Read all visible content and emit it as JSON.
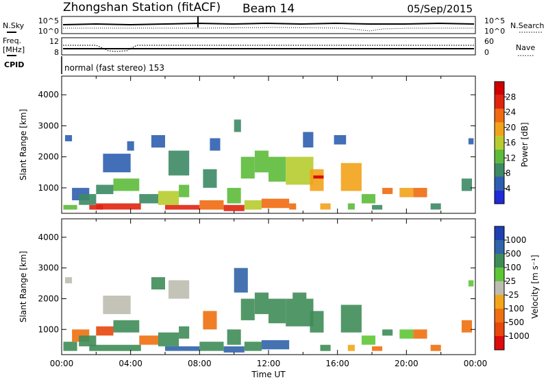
{
  "header": {
    "title": "Zhongshan Station (fitACF)",
    "beam": "Beam 14",
    "date": "05/Sep/2015"
  },
  "top_panels": {
    "nsky_label": "N.Sky",
    "nsky_ticks": [
      "10^5",
      "10^0"
    ],
    "nsearch_label": "N.Search",
    "nsearch_ticks": [
      "10^5",
      "10^0"
    ],
    "freq_label_1": "Freq.",
    "freq_label_2": "[MHz]",
    "freq_ticks": [
      "12",
      "8"
    ],
    "nave_label": "Nave",
    "nave_ticks": [
      "60",
      "0"
    ],
    "cpid_label": "CPID",
    "cpid_text": "normal (fast stereo) 153"
  },
  "colors": {
    "power": [
      "#1f2bd6",
      "#2d5fb0",
      "#3c8a64",
      "#5dbb3a",
      "#b7cc2f",
      "#f2a219",
      "#ef6a10",
      "#e02410",
      "#d00000"
    ],
    "velocity": [
      "#1f3fb3",
      "#3164a8",
      "#3f8c58",
      "#5ec636",
      "#bcbcb0",
      "#f2a619",
      "#ee7010",
      "#e8470d",
      "#dd0b0b"
    ]
  },
  "chart_data": [
    {
      "type": "heatmap",
      "title": "",
      "quantity": "Power",
      "ylabel": "Slant Range [km]",
      "xlabel": "",
      "y_ticks": [
        1000,
        2000,
        3000,
        4000
      ],
      "ylim": [
        180,
        4600
      ],
      "xlim_hours": [
        0,
        24
      ],
      "colorbar_label": "Power [dB]",
      "colorbar_ticks": [
        "4",
        "8",
        "12",
        "16",
        "20",
        "24",
        "28"
      ],
      "colorbar_range": [
        0,
        32
      ],
      "cells": [
        {
          "t0": 0.1,
          "t1": 0.9,
          "r0": 300,
          "r1": 450,
          "v": 14
        },
        {
          "t0": 0.2,
          "t1": 0.6,
          "r0": 2500,
          "r1": 2700,
          "v": 6
        },
        {
          "t0": 0.6,
          "t1": 1.6,
          "r0": 600,
          "r1": 1000,
          "v": 6
        },
        {
          "t0": 1.0,
          "t1": 2.0,
          "r0": 450,
          "r1": 800,
          "v": 10
        },
        {
          "t0": 1.6,
          "t1": 2.4,
          "r0": 300,
          "r1": 450,
          "v": 26
        },
        {
          "t0": 2.0,
          "t1": 4.6,
          "r0": 300,
          "r1": 500,
          "v": 28
        },
        {
          "t0": 2.0,
          "t1": 3.0,
          "r0": 800,
          "r1": 1100,
          "v": 10
        },
        {
          "t0": 2.4,
          "t1": 4.0,
          "r0": 1500,
          "r1": 2100,
          "v": 7
        },
        {
          "t0": 3.0,
          "t1": 4.5,
          "r0": 900,
          "r1": 1300,
          "v": 13
        },
        {
          "t0": 3.8,
          "t1": 4.2,
          "r0": 2200,
          "r1": 2500,
          "v": 6
        },
        {
          "t0": 4.5,
          "t1": 5.6,
          "r0": 500,
          "r1": 800,
          "v": 8
        },
        {
          "t0": 5.2,
          "t1": 6.0,
          "r0": 2300,
          "r1": 2700,
          "v": 6
        },
        {
          "t0": 5.6,
          "t1": 6.8,
          "r0": 450,
          "r1": 900,
          "v": 16
        },
        {
          "t0": 6.0,
          "t1": 8.0,
          "r0": 300,
          "r1": 450,
          "v": 26
        },
        {
          "t0": 6.2,
          "t1": 7.4,
          "r0": 1400,
          "r1": 2200,
          "v": 9
        },
        {
          "t0": 6.8,
          "t1": 7.4,
          "r0": 700,
          "r1": 1100,
          "v": 11
        },
        {
          "t0": 8.0,
          "t1": 9.4,
          "r0": 300,
          "r1": 600,
          "v": 24
        },
        {
          "t0": 8.2,
          "t1": 9.0,
          "r0": 1000,
          "r1": 1600,
          "v": 10
        },
        {
          "t0": 8.6,
          "t1": 9.2,
          "r0": 2200,
          "r1": 2600,
          "v": 6
        },
        {
          "t0": 9.4,
          "t1": 10.6,
          "r0": 250,
          "r1": 450,
          "v": 27
        },
        {
          "t0": 9.6,
          "t1": 10.4,
          "r0": 500,
          "r1": 1000,
          "v": 14
        },
        {
          "t0": 10.0,
          "t1": 10.4,
          "r0": 2800,
          "r1": 3200,
          "v": 8
        },
        {
          "t0": 10.4,
          "t1": 11.2,
          "r0": 1300,
          "r1": 2000,
          "v": 13
        },
        {
          "t0": 10.6,
          "t1": 11.6,
          "r0": 300,
          "r1": 600,
          "v": 15
        },
        {
          "t0": 11.2,
          "t1": 12.0,
          "r0": 1500,
          "r1": 2200,
          "v": 12
        },
        {
          "t0": 11.6,
          "t1": 13.2,
          "r0": 350,
          "r1": 650,
          "v": 22
        },
        {
          "t0": 12.0,
          "t1": 13.0,
          "r0": 1200,
          "r1": 2000,
          "v": 14
        },
        {
          "t0": 13.0,
          "t1": 14.6,
          "r0": 1100,
          "r1": 2000,
          "v": 15
        },
        {
          "t0": 13.2,
          "t1": 13.6,
          "r0": 300,
          "r1": 500,
          "v": 22
        },
        {
          "t0": 14.0,
          "t1": 14.6,
          "r0": 2300,
          "r1": 2800,
          "v": 7
        },
        {
          "t0": 14.4,
          "t1": 15.2,
          "r0": 900,
          "r1": 1600,
          "v": 21
        },
        {
          "t0": 14.6,
          "t1": 15.2,
          "r0": 1300,
          "r1": 1400,
          "v": 30
        },
        {
          "t0": 15.0,
          "t1": 15.6,
          "r0": 300,
          "r1": 500,
          "v": 18
        },
        {
          "t0": 15.8,
          "t1": 16.5,
          "r0": 2400,
          "r1": 2700,
          "v": 6
        },
        {
          "t0": 16.2,
          "t1": 17.4,
          "r0": 900,
          "r1": 1800,
          "v": 20
        },
        {
          "t0": 16.6,
          "t1": 17.0,
          "r0": 300,
          "r1": 500,
          "v": 14
        },
        {
          "t0": 17.4,
          "t1": 18.2,
          "r0": 500,
          "r1": 800,
          "v": 12
        },
        {
          "t0": 18.0,
          "t1": 18.6,
          "r0": 300,
          "r1": 450,
          "v": 10
        },
        {
          "t0": 18.6,
          "t1": 19.2,
          "r0": 800,
          "r1": 1000,
          "v": 22
        },
        {
          "t0": 19.6,
          "t1": 20.4,
          "r0": 700,
          "r1": 1000,
          "v": 20
        },
        {
          "t0": 20.4,
          "t1": 21.2,
          "r0": 700,
          "r1": 1000,
          "v": 22
        },
        {
          "t0": 21.4,
          "t1": 22.0,
          "r0": 300,
          "r1": 500,
          "v": 8
        },
        {
          "t0": 23.2,
          "t1": 23.8,
          "r0": 900,
          "r1": 1300,
          "v": 8
        },
        {
          "t0": 23.6,
          "t1": 23.9,
          "r0": 2400,
          "r1": 2600,
          "v": 6
        }
      ]
    },
    {
      "type": "heatmap",
      "title": "",
      "quantity": "Velocity",
      "ylabel": "Slant Range [km]",
      "xlabel": "Time UT",
      "x_ticks": [
        "00:00",
        "04:00",
        "08:00",
        "12:00",
        "16:00",
        "20:00",
        "00:00"
      ],
      "y_ticks": [
        1000,
        2000,
        3000,
        4000
      ],
      "ylim": [
        180,
        4600
      ],
      "xlim_hours": [
        0,
        24
      ],
      "colorbar_label": "Velocity [m s⁻¹]",
      "colorbar_ticks": [
        "-1000",
        "-500",
        "-100",
        "-25",
        "25",
        "100",
        "500",
        "1000"
      ],
      "colorbar_levels": 9,
      "cells": [
        {
          "t0": 0.1,
          "t1": 0.9,
          "r0": 300,
          "r1": 600,
          "v": 6
        },
        {
          "t0": 0.2,
          "t1": 0.6,
          "r0": 2500,
          "r1": 2700,
          "v": 4
        },
        {
          "t0": 0.6,
          "t1": 1.6,
          "r0": 600,
          "r1": 1000,
          "v": 2
        },
        {
          "t0": 1.0,
          "t1": 2.0,
          "r0": 450,
          "r1": 800,
          "v": 6
        },
        {
          "t0": 1.6,
          "t1": 4.6,
          "r0": 300,
          "r1": 500,
          "v": 6
        },
        {
          "t0": 2.0,
          "t1": 3.0,
          "r0": 800,
          "r1": 1100,
          "v": 1
        },
        {
          "t0": 2.4,
          "t1": 4.0,
          "r0": 1500,
          "r1": 2100,
          "v": 4
        },
        {
          "t0": 3.0,
          "t1": 4.5,
          "r0": 900,
          "r1": 1300,
          "v": 6
        },
        {
          "t0": 4.5,
          "t1": 5.6,
          "r0": 500,
          "r1": 800,
          "v": 2
        },
        {
          "t0": 5.2,
          "t1": 6.0,
          "r0": 2300,
          "r1": 2700,
          "v": 6
        },
        {
          "t0": 5.6,
          "t1": 6.8,
          "r0": 450,
          "r1": 900,
          "v": 6
        },
        {
          "t0": 6.0,
          "t1": 8.0,
          "r0": 300,
          "r1": 450,
          "v": 7
        },
        {
          "t0": 6.2,
          "t1": 7.4,
          "r0": 2000,
          "r1": 2600,
          "v": 4
        },
        {
          "t0": 6.8,
          "t1": 7.4,
          "r0": 700,
          "r1": 1100,
          "v": 6
        },
        {
          "t0": 8.0,
          "t1": 9.4,
          "r0": 300,
          "r1": 600,
          "v": 6
        },
        {
          "t0": 8.2,
          "t1": 9.0,
          "r0": 1000,
          "r1": 1600,
          "v": 2
        },
        {
          "t0": 9.4,
          "t1": 10.6,
          "r0": 250,
          "r1": 450,
          "v": 7
        },
        {
          "t0": 9.6,
          "t1": 10.4,
          "r0": 500,
          "r1": 1000,
          "v": 6
        },
        {
          "t0": 10.0,
          "t1": 10.8,
          "r0": 2200,
          "r1": 3000,
          "v": 7
        },
        {
          "t0": 10.4,
          "t1": 11.2,
          "r0": 1300,
          "r1": 2000,
          "v": 6
        },
        {
          "t0": 10.6,
          "t1": 11.6,
          "r0": 300,
          "r1": 600,
          "v": 6
        },
        {
          "t0": 11.2,
          "t1": 12.0,
          "r0": 1500,
          "r1": 2200,
          "v": 6
        },
        {
          "t0": 11.6,
          "t1": 13.2,
          "r0": 350,
          "r1": 650,
          "v": 7
        },
        {
          "t0": 12.0,
          "t1": 13.0,
          "r0": 1200,
          "r1": 2000,
          "v": 6
        },
        {
          "t0": 13.0,
          "t1": 14.6,
          "r0": 1100,
          "r1": 2000,
          "v": 6
        },
        {
          "t0": 13.4,
          "t1": 14.2,
          "r0": 2000,
          "r1": 2200,
          "v": 6
        },
        {
          "t0": 14.4,
          "t1": 15.2,
          "r0": 900,
          "r1": 1600,
          "v": 6
        },
        {
          "t0": 15.0,
          "t1": 15.6,
          "r0": 300,
          "r1": 500,
          "v": 6
        },
        {
          "t0": 16.2,
          "t1": 17.4,
          "r0": 900,
          "r1": 1800,
          "v": 6
        },
        {
          "t0": 16.6,
          "t1": 17.0,
          "r0": 300,
          "r1": 500,
          "v": 3
        },
        {
          "t0": 17.4,
          "t1": 18.2,
          "r0": 500,
          "r1": 800,
          "v": 5
        },
        {
          "t0": 18.0,
          "t1": 18.6,
          "r0": 300,
          "r1": 450,
          "v": 2
        },
        {
          "t0": 18.6,
          "t1": 19.2,
          "r0": 800,
          "r1": 1000,
          "v": 6
        },
        {
          "t0": 19.6,
          "t1": 20.4,
          "r0": 700,
          "r1": 1000,
          "v": 5
        },
        {
          "t0": 20.4,
          "t1": 21.2,
          "r0": 700,
          "r1": 1000,
          "v": 2
        },
        {
          "t0": 21.4,
          "t1": 22.0,
          "r0": 300,
          "r1": 500,
          "v": 2
        },
        {
          "t0": 23.2,
          "t1": 23.8,
          "r0": 900,
          "r1": 1300,
          "v": 2
        },
        {
          "t0": 23.6,
          "t1": 23.9,
          "r0": 2400,
          "r1": 2600,
          "v": 5
        }
      ]
    }
  ]
}
